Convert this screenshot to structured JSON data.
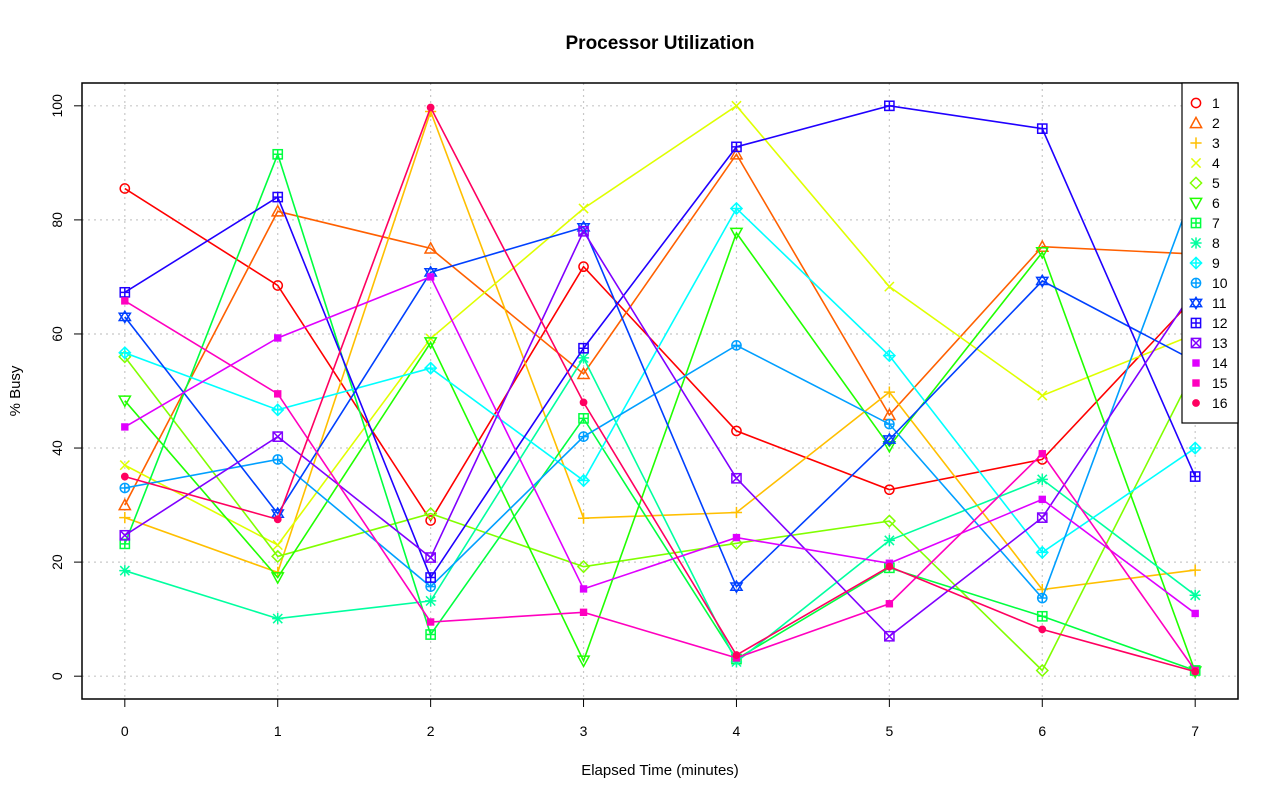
{
  "chart_data": {
    "type": "line",
    "title": "Processor Utilization",
    "xlabel": "Elapsed Time (minutes)",
    "ylabel": "% Busy",
    "x": [
      0,
      1,
      2,
      3,
      4,
      5,
      6,
      7
    ],
    "xlim": [
      -0.28,
      7.28
    ],
    "ylim": [
      -4,
      104
    ],
    "xticks": [
      0,
      1,
      2,
      3,
      4,
      5,
      6,
      7
    ],
    "yticks": [
      0,
      20,
      40,
      60,
      80,
      100
    ],
    "grid": true,
    "legend_position": "top-right",
    "series": [
      {
        "name": "1",
        "marker": "circle",
        "color": "#FF0000",
        "values": [
          85.5,
          68.5,
          27.3,
          71.8,
          43.0,
          32.7,
          38.0,
          66.5
        ]
      },
      {
        "name": "2",
        "marker": "triangle",
        "color": "#FF6000",
        "values": [
          30.0,
          81.5,
          75.0,
          53.0,
          91.5,
          45.8,
          75.3,
          74.0
        ]
      },
      {
        "name": "3",
        "marker": "plus",
        "color": "#FFBF00",
        "values": [
          27.8,
          18.2,
          99.0,
          27.7,
          28.7,
          49.8,
          15.2,
          18.6
        ]
      },
      {
        "name": "4",
        "marker": "x",
        "color": "#DFFF00",
        "values": [
          37.0,
          23.0,
          59.2,
          82.0,
          100.0,
          68.3,
          49.2,
          60.0
        ]
      },
      {
        "name": "5",
        "marker": "diamond",
        "color": "#80FF00",
        "values": [
          56.0,
          21.0,
          28.5,
          19.2,
          23.3,
          27.2,
          1.0,
          54.0
        ]
      },
      {
        "name": "6",
        "marker": "triangle-down",
        "color": "#20FF00",
        "values": [
          48.3,
          17.3,
          58.5,
          2.7,
          77.7,
          40.3,
          74.3,
          0.8
        ]
      },
      {
        "name": "7",
        "marker": "square-plus",
        "color": "#00FF40",
        "values": [
          23.2,
          91.5,
          7.3,
          45.2,
          3.0,
          19.0,
          10.5,
          1.0
        ]
      },
      {
        "name": "8",
        "marker": "asterisk",
        "color": "#00FF9F",
        "values": [
          18.5,
          10.1,
          13.2,
          55.8,
          2.5,
          23.8,
          34.5,
          14.2
        ]
      },
      {
        "name": "9",
        "marker": "diamond-plus",
        "color": "#00FFFF",
        "values": [
          56.7,
          46.7,
          54.0,
          34.3,
          82.0,
          56.2,
          21.7,
          40.0
        ]
      },
      {
        "name": "10",
        "marker": "circle-plus",
        "color": "#009FFF",
        "values": [
          33.0,
          38.0,
          15.7,
          42.0,
          58.0,
          44.2,
          13.7,
          86.0
        ]
      },
      {
        "name": "11",
        "marker": "star-of-david",
        "color": "#0040FF",
        "values": [
          63.0,
          28.5,
          70.8,
          78.7,
          15.7,
          41.5,
          69.3,
          55.2
        ]
      },
      {
        "name": "12",
        "marker": "square-plus",
        "color": "#2000FF",
        "values": [
          67.3,
          84.0,
          17.3,
          57.5,
          92.8,
          100.0,
          96.0,
          35.0
        ]
      },
      {
        "name": "13",
        "marker": "square-x",
        "color": "#8000FF",
        "values": [
          24.7,
          42.0,
          20.8,
          78.0,
          34.7,
          7.0,
          27.8,
          68.0
        ]
      },
      {
        "name": "14",
        "marker": "square-small",
        "color": "#DF00FF",
        "values": [
          43.7,
          59.3,
          70.0,
          15.3,
          24.3,
          19.8,
          31.0,
          11.0
        ]
      },
      {
        "name": "15",
        "marker": "square-small",
        "color": "#FF00BF",
        "values": [
          65.8,
          49.5,
          9.5,
          11.2,
          3.2,
          12.7,
          39.0,
          1.0
        ]
      },
      {
        "name": "16",
        "marker": "dot",
        "color": "#FF0060",
        "values": [
          35.0,
          27.5,
          99.7,
          48.0,
          3.7,
          19.2,
          8.2,
          0.8
        ]
      }
    ]
  }
}
